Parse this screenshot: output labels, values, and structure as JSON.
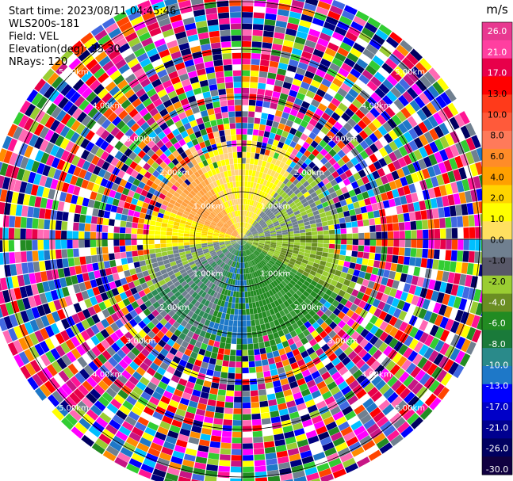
{
  "header": {
    "start_time": "Start time: 2023/08/11 04:45:46",
    "instrument": "WLS200s-181",
    "field": "Field: VEL",
    "elevation": "Elevation(deg): 35.30",
    "nrays": "NRays: 120"
  },
  "chart_data": {
    "type": "heatmap",
    "projection": "polar-ppi",
    "field": "VEL",
    "units": "m/s",
    "range_rings_km": [
      1,
      2,
      3,
      4,
      5
    ],
    "range_ring_labels": [
      "1.00km",
      "2.00km",
      "3.00km",
      "4.00km",
      "5.00km"
    ],
    "max_range_km": 5.4,
    "n_rays": 120,
    "colorbar": {
      "unit": "m/s",
      "ticks": [
        "26.0",
        "21.0",
        "17.0",
        "13.0",
        "10.0",
        "8.0",
        "6.0",
        "4.0",
        "2.0",
        "1.0",
        "0.0",
        "-1.0",
        "-2.0",
        "-4.0",
        "-6.0",
        "-8.0",
        "-10.0",
        "-13.0",
        "-17.0",
        "-21.0",
        "-26.0",
        "-30.0"
      ],
      "colors": [
        "#e83890",
        "#ff3fa0",
        "#e8004a",
        "#ff0000",
        "#ff3a1a",
        "#ff5a3a",
        "#ff7a5a",
        "#ff8c28",
        "#ffa000",
        "#ffd400",
        "#ffff00",
        "#ffe060",
        "#708090",
        "#585868",
        "#9acd32",
        "#6b8e23",
        "#228b22",
        "#1a7a3a",
        "#2a8a8a",
        "#1e78c8",
        "#0000ff",
        "#0000c8",
        "#000090",
        "#000060",
        "#100040"
      ]
    }
  }
}
